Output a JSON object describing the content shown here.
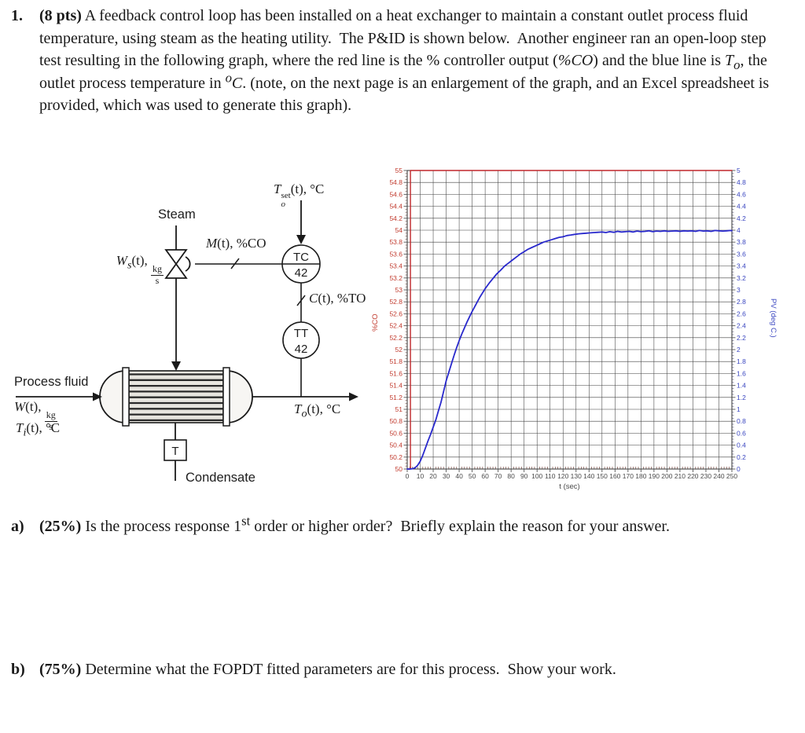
{
  "intro": {
    "number": "1.",
    "points": "(8 pts)",
    "seg1": " A feedback control loop has been installed on a heat exchanger to maintain a constant outlet process fluid temperature, using steam as the heating utility.  The P&ID is shown below.  Another engineer ran an open-loop step test resulting in the following graph, where the red line is the % controller output (",
    "pct_co": "%CO",
    "seg2": ") and the blue line is ",
    "t_var": "T",
    "t_sub": "o",
    "seg3": ", the outlet process temperature in ",
    "deg_sup": "o",
    "deg_c": "C",
    "seg4": ". (note, on the next page is an enlargement of the graph, and an Excel spreadsheet is provided, which was used to generate this graph)."
  },
  "pid": {
    "steam": "Steam",
    "ws": {
      "var": "W",
      "sub": "s",
      "rest": "(t), ",
      "frac_top": "kg",
      "frac_bot": "s"
    },
    "m": {
      "var": "M",
      "rest": "(t), %CO"
    },
    "toset": {
      "var": "T",
      "sup": "set",
      "sub": "o",
      "rest": "(t), °C"
    },
    "tc": {
      "line1": "TC",
      "line2": "42"
    },
    "c": {
      "var": "C",
      "rest": "(t), %TO"
    },
    "tt": {
      "line1": "TT",
      "line2": "42"
    },
    "process_fluid": "Process fluid",
    "w": {
      "var": "W",
      "rest": "(t), ",
      "frac_top": "kg",
      "frac_bot": "s"
    },
    "ti": {
      "var": "T",
      "sub": "i",
      "rest": "(t), °C"
    },
    "to": {
      "var": "T",
      "sub": "o",
      "rest": "(t), °C"
    },
    "trap": "T",
    "condensate": "Condensate"
  },
  "chart_data": {
    "type": "line",
    "title": "",
    "xlabel": "t (sec)",
    "ylabel_left": "%CO",
    "ylabel_right": "PV (deg C.)",
    "x": {
      "min": 0,
      "max": 250,
      "major": 10,
      "minor": 2
    },
    "y_left": {
      "min": 50,
      "max": 55,
      "major": 0.2
    },
    "y_right": {
      "min": 0,
      "max": 5,
      "major": 0.2
    },
    "grid": true,
    "legend": "none",
    "colors": {
      "left_axis": "#c23b2e",
      "right_axis": "#3a46c0",
      "xticks": "#4a4a4a",
      "grid": "#3f3f3f"
    },
    "series": [
      {
        "name": "controller output %CO (red, step 50 to 55 at t=2.5 s)",
        "axis": "left",
        "color": "#c0272b",
        "points": [
          [
            0,
            50
          ],
          [
            2.5,
            50
          ],
          [
            2.5,
            55
          ],
          [
            250,
            55
          ]
        ]
      },
      {
        "name": "To outlet temperature PV deg C (blue)",
        "axis": "right",
        "color": "#2929cc",
        "points": [
          [
            0,
            0
          ],
          [
            2,
            0
          ],
          [
            4,
            0.005
          ],
          [
            6,
            0.02
          ],
          [
            8,
            0.06
          ],
          [
            10,
            0.13
          ],
          [
            12,
            0.23
          ],
          [
            14,
            0.35
          ],
          [
            16,
            0.47
          ],
          [
            18,
            0.58
          ],
          [
            20,
            0.7
          ],
          [
            22,
            0.82
          ],
          [
            24,
            0.97
          ],
          [
            26,
            1.12
          ],
          [
            28,
            1.3
          ],
          [
            30,
            1.48
          ],
          [
            32,
            1.62
          ],
          [
            34,
            1.76
          ],
          [
            36,
            1.9
          ],
          [
            38,
            2.03
          ],
          [
            40,
            2.15
          ],
          [
            42,
            2.26
          ],
          [
            44,
            2.36
          ],
          [
            46,
            2.46
          ],
          [
            48,
            2.55
          ],
          [
            50,
            2.64
          ],
          [
            52,
            2.72
          ],
          [
            54,
            2.8
          ],
          [
            56,
            2.88
          ],
          [
            58,
            2.95
          ],
          [
            60,
            3.02
          ],
          [
            63,
            3.11
          ],
          [
            66,
            3.19
          ],
          [
            69,
            3.27
          ],
          [
            72,
            3.33
          ],
          [
            75,
            3.4
          ],
          [
            78,
            3.45
          ],
          [
            81,
            3.5
          ],
          [
            84,
            3.55
          ],
          [
            87,
            3.6
          ],
          [
            90,
            3.64
          ],
          [
            93,
            3.68
          ],
          [
            96,
            3.71
          ],
          [
            99,
            3.74
          ],
          [
            102,
            3.77
          ],
          [
            105,
            3.8
          ],
          [
            108,
            3.82
          ],
          [
            111,
            3.84
          ],
          [
            114,
            3.86
          ],
          [
            117,
            3.88
          ],
          [
            120,
            3.89
          ],
          [
            123,
            3.91
          ],
          [
            126,
            3.92
          ],
          [
            129,
            3.93
          ],
          [
            132,
            3.94
          ],
          [
            135,
            3.945
          ],
          [
            138,
            3.95
          ],
          [
            141,
            3.955
          ],
          [
            144,
            3.96
          ],
          [
            147,
            3.965
          ],
          [
            150,
            3.97
          ],
          [
            153,
            3.96
          ],
          [
            156,
            3.975
          ],
          [
            159,
            3.965
          ],
          [
            162,
            3.98
          ],
          [
            165,
            3.97
          ],
          [
            168,
            3.975
          ],
          [
            171,
            3.98
          ],
          [
            174,
            3.97
          ],
          [
            177,
            3.985
          ],
          [
            180,
            3.975
          ],
          [
            183,
            3.98
          ],
          [
            186,
            3.99
          ],
          [
            189,
            3.975
          ],
          [
            192,
            3.985
          ],
          [
            195,
            3.98
          ],
          [
            198,
            3.99
          ],
          [
            201,
            3.98
          ],
          [
            204,
            3.985
          ],
          [
            207,
            3.99
          ],
          [
            210,
            3.98
          ],
          [
            213,
            3.99
          ],
          [
            216,
            3.985
          ],
          [
            219,
            3.99
          ],
          [
            222,
            3.98
          ],
          [
            225,
            3.995
          ],
          [
            228,
            3.985
          ],
          [
            231,
            3.99
          ],
          [
            234,
            3.98
          ],
          [
            237,
            3.995
          ],
          [
            240,
            3.99
          ],
          [
            243,
            3.985
          ],
          [
            246,
            3.99
          ],
          [
            249,
            3.995
          ],
          [
            250,
            3.99
          ]
        ]
      }
    ]
  },
  "qa": {
    "label": "a)",
    "points": "(25%)",
    "seg1": " Is the process response 1",
    "sup": "st",
    "seg2": " order or higher order?  Briefly explain the reason for your answer."
  },
  "qb": {
    "label": "b)",
    "points": "(75%)",
    "text": " Determine what the FOPDT fitted parameters are for this process.  Show your work."
  }
}
